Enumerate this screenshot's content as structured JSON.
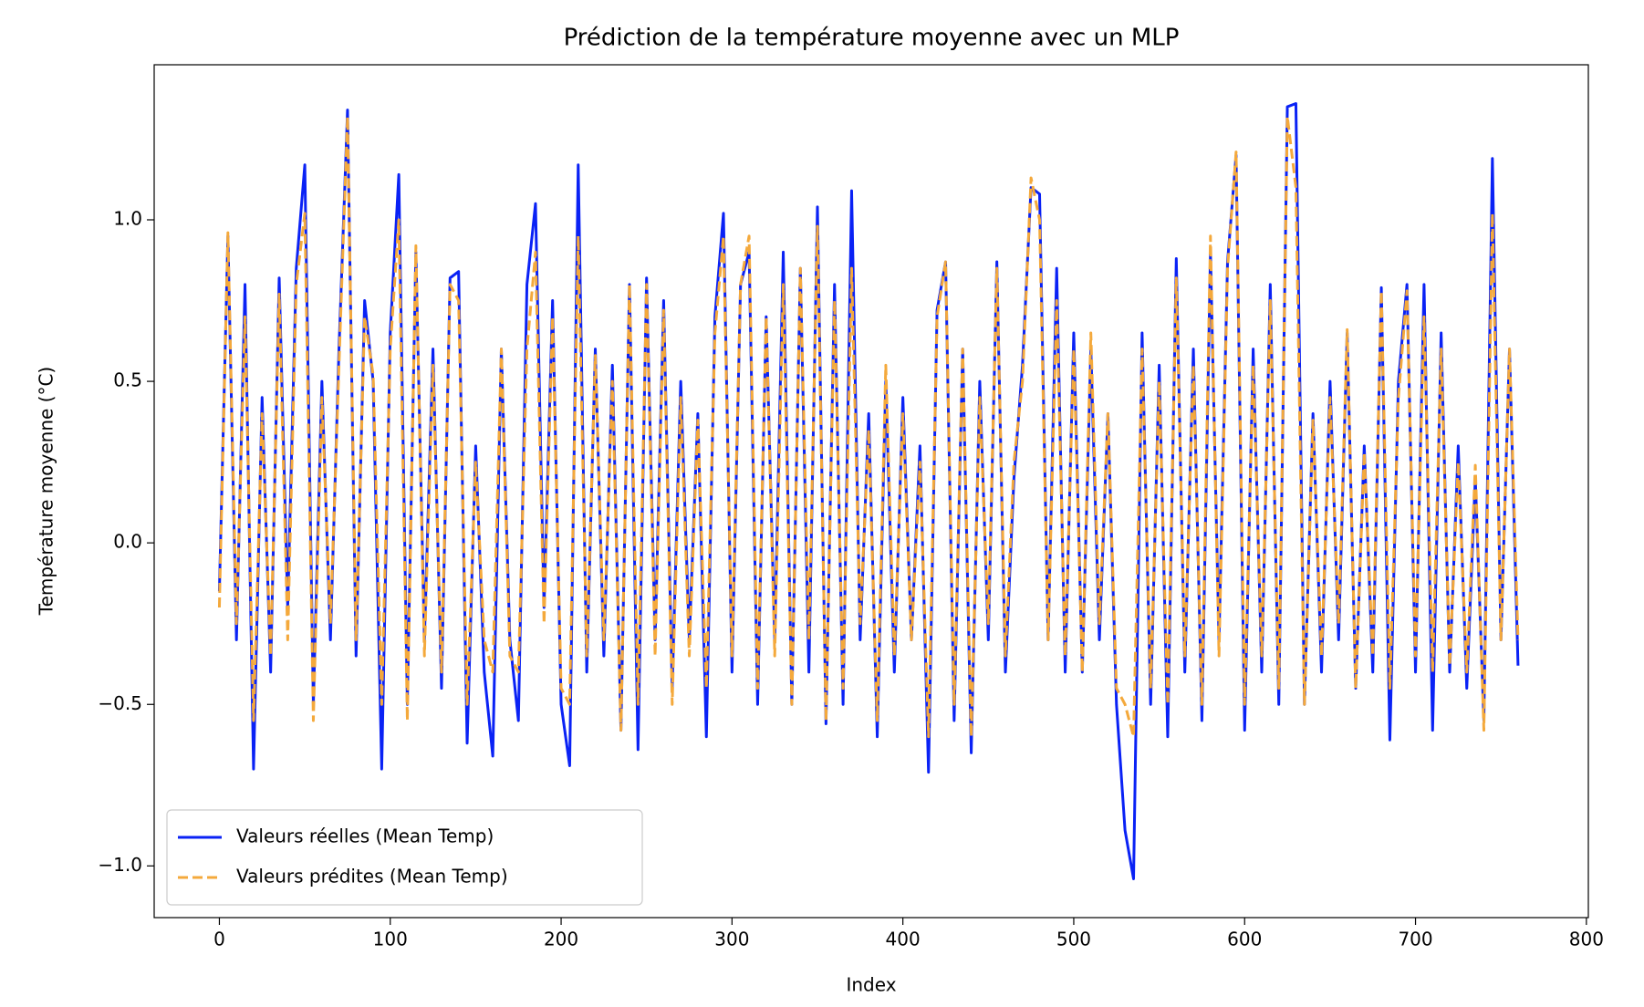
{
  "chart_data": {
    "type": "line",
    "title": "Prédiction de la température moyenne avec un MLP",
    "xlabel": "Index",
    "ylabel": "Température moyenne (°C)",
    "x": [
      0,
      5,
      10,
      15,
      20,
      25,
      30,
      35,
      40,
      45,
      50,
      55,
      60,
      65,
      70,
      75,
      80,
      85,
      90,
      95,
      100,
      105,
      110,
      115,
      120,
      125,
      130,
      135,
      140,
      145,
      150,
      155,
      160,
      165,
      170,
      175,
      180,
      185,
      190,
      195,
      200,
      205,
      210,
      215,
      220,
      225,
      230,
      235,
      240,
      245,
      250,
      255,
      260,
      265,
      270,
      275,
      280,
      285,
      290,
      295,
      300,
      305,
      310,
      315,
      320,
      325,
      330,
      335,
      340,
      345,
      350,
      355,
      360,
      365,
      370,
      375,
      380,
      385,
      390,
      395,
      400,
      405,
      410,
      415,
      420,
      425,
      430,
      435,
      440,
      445,
      450,
      455,
      460,
      465,
      470,
      475,
      480,
      485,
      490,
      495,
      500,
      505,
      510,
      515,
      520,
      525,
      530,
      535,
      540,
      545,
      550,
      555,
      560,
      565,
      570,
      575,
      580,
      585,
      590,
      595,
      600,
      605,
      610,
      615,
      620,
      625,
      630,
      635,
      640,
      645,
      650,
      655,
      660,
      665,
      670,
      675,
      680,
      685,
      690,
      695,
      700,
      705,
      710,
      715,
      720,
      725,
      730,
      735,
      740,
      745,
      750,
      755,
      760
    ],
    "series": [
      {
        "name": "Valeurs réelles (Mean Temp)",
        "color": "#0a22f5",
        "dash": false,
        "values": [
          -0.15,
          0.95,
          -0.3,
          0.8,
          -0.7,
          0.45,
          -0.4,
          0.82,
          -0.2,
          0.85,
          1.17,
          -0.5,
          0.5,
          -0.3,
          0.6,
          1.34,
          -0.35,
          0.75,
          0.5,
          -0.7,
          0.65,
          1.14,
          -0.5,
          0.9,
          -0.3,
          0.6,
          -0.45,
          0.82,
          0.84,
          -0.62,
          0.3,
          -0.4,
          -0.66,
          0.6,
          -0.3,
          -0.55,
          0.8,
          1.05,
          -0.2,
          0.75,
          -0.5,
          -0.69,
          1.17,
          -0.4,
          0.6,
          -0.35,
          0.55,
          -0.58,
          0.8,
          -0.64,
          0.82,
          -0.3,
          0.75,
          -0.45,
          0.5,
          -0.3,
          0.4,
          -0.6,
          0.7,
          1.02,
          -0.4,
          0.8,
          0.9,
          -0.5,
          0.7,
          -0.3,
          0.9,
          -0.5,
          0.85,
          -0.4,
          1.04,
          -0.56,
          0.8,
          -0.5,
          1.09,
          -0.3,
          0.4,
          -0.6,
          0.5,
          -0.4,
          0.45,
          -0.3,
          0.3,
          -0.71,
          0.72,
          0.87,
          -0.55,
          0.6,
          -0.65,
          0.5,
          -0.3,
          0.87,
          -0.4,
          0.2,
          0.55,
          1.1,
          1.08,
          -0.3,
          0.85,
          -0.4,
          0.65,
          -0.4,
          0.6,
          -0.3,
          0.4,
          -0.5,
          -0.89,
          -1.04,
          0.65,
          -0.5,
          0.55,
          -0.6,
          0.88,
          -0.4,
          0.6,
          -0.55,
          0.9,
          -0.3,
          0.87,
          1.2,
          -0.58,
          0.6,
          -0.4,
          0.8,
          -0.5,
          1.35,
          1.36,
          -0.5,
          0.4,
          -0.4,
          0.5,
          -0.3,
          0.65,
          -0.45,
          0.3,
          -0.4,
          0.79,
          -0.61,
          0.5,
          0.8,
          -0.4,
          0.8,
          -0.58,
          0.65,
          -0.4,
          0.3,
          -0.45,
          0.2,
          -0.55,
          1.19,
          -0.3,
          0.6,
          -0.38
        ]
      },
      {
        "name": "Valeurs prédites (Mean Temp)",
        "color": "#f4a93c",
        "dash": true,
        "values": [
          -0.2,
          0.96,
          -0.25,
          0.7,
          -0.55,
          0.4,
          -0.35,
          0.77,
          -0.3,
          0.8,
          1.02,
          -0.55,
          0.45,
          -0.25,
          0.55,
          1.32,
          -0.3,
          0.7,
          0.52,
          -0.5,
          0.6,
          1.0,
          -0.55,
          0.92,
          -0.35,
          0.55,
          -0.4,
          0.8,
          0.75,
          -0.5,
          0.25,
          -0.3,
          -0.4,
          0.6,
          -0.35,
          -0.4,
          0.6,
          0.9,
          -0.25,
          0.7,
          -0.45,
          -0.5,
          0.95,
          -0.35,
          0.58,
          -0.3,
          0.5,
          -0.58,
          0.8,
          -0.5,
          0.8,
          -0.35,
          0.72,
          -0.5,
          0.45,
          -0.35,
          0.38,
          -0.45,
          0.65,
          0.95,
          -0.35,
          0.8,
          0.95,
          -0.45,
          0.7,
          -0.35,
          0.8,
          -0.5,
          0.85,
          -0.3,
          0.98,
          -0.55,
          0.75,
          -0.45,
          0.85,
          -0.25,
          0.35,
          -0.55,
          0.55,
          -0.35,
          0.4,
          -0.3,
          0.25,
          -0.6,
          0.7,
          0.87,
          -0.5,
          0.6,
          -0.6,
          0.45,
          -0.25,
          0.85,
          -0.35,
          0.25,
          0.5,
          1.13,
          1.0,
          -0.3,
          0.75,
          -0.35,
          0.6,
          -0.4,
          0.65,
          -0.25,
          0.4,
          -0.45,
          -0.5,
          -0.6,
          0.6,
          -0.45,
          0.5,
          -0.5,
          0.82,
          -0.35,
          0.55,
          -0.5,
          0.95,
          -0.35,
          0.85,
          1.21,
          -0.5,
          0.55,
          -0.35,
          0.75,
          -0.45,
          1.32,
          1.1,
          -0.5,
          0.38,
          -0.35,
          0.45,
          -0.25,
          0.66,
          -0.45,
          0.28,
          -0.35,
          0.78,
          -0.45,
          0.45,
          0.78,
          -0.35,
          0.7,
          -0.4,
          0.6,
          -0.38,
          0.25,
          -0.4,
          0.24,
          -0.58,
          1.02,
          -0.3,
          0.6,
          -0.3
        ]
      }
    ],
    "xlim": [
      -38.15,
      801.15
    ],
    "xticks": [
      0,
      100,
      200,
      300,
      400,
      500,
      600,
      700,
      800
    ],
    "ylim": [
      -1.16,
      1.48
    ],
    "yticks": [
      {
        "value": -1,
        "label": "−1.0"
      },
      {
        "value": -0.5,
        "label": "−0.5"
      },
      {
        "value": 0,
        "label": "0.0"
      },
      0.5,
      {
        "value": 1,
        "label": "1.0"
      }
    ],
    "legend": "lower left"
  }
}
